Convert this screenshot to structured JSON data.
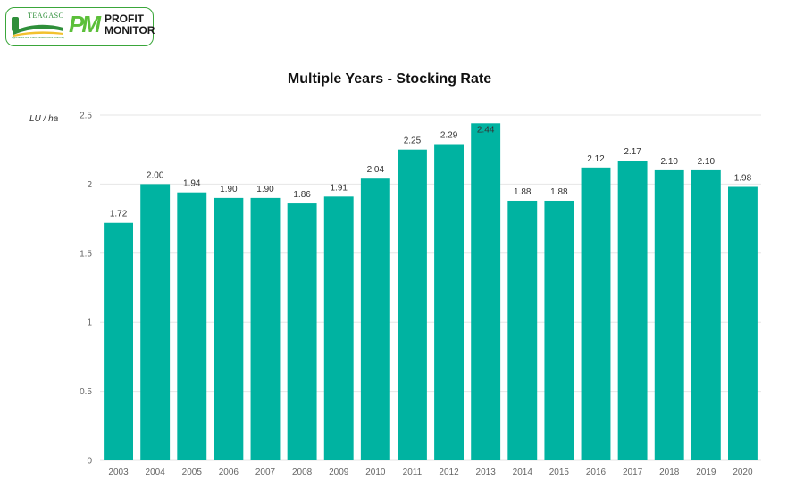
{
  "logo": {
    "org": "TEAGASC",
    "org_tagline": "Agriculture and Food Development Authority",
    "mark": "PM",
    "product_line1": "PROFIT",
    "product_line2": "MONITOR"
  },
  "colors": {
    "bar": "#00b3a1",
    "grid": "#e6e6e6",
    "brand_green": "#5cbf3a"
  },
  "chart_data": {
    "type": "bar",
    "title": "Multiple Years -  Stocking Rate",
    "ylabel": "LU / ha",
    "xlabel": "",
    "ylim": [
      0,
      2.5
    ],
    "yticks": [
      0,
      0.5,
      1,
      1.5,
      2,
      2.5
    ],
    "ytick_labels": [
      "0",
      "0.5",
      "1",
      "1.5",
      "2",
      "2.5"
    ],
    "grid": true,
    "categories": [
      "2003",
      "2004",
      "2005",
      "2006",
      "2007",
      "2008",
      "2009",
      "2010",
      "2011",
      "2012",
      "2013",
      "2014",
      "2015",
      "2016",
      "2017",
      "2018",
      "2019",
      "2020"
    ],
    "values": [
      1.72,
      2.0,
      1.94,
      1.9,
      1.9,
      1.86,
      1.91,
      2.04,
      2.25,
      2.29,
      2.44,
      1.88,
      1.88,
      2.12,
      2.17,
      2.1,
      2.1,
      1.98
    ],
    "value_labels": [
      "1.72",
      "2.00",
      "1.94",
      "1.90",
      "1.90",
      "1.86",
      "1.91",
      "2.04",
      "2.25",
      "2.29",
      "2.44",
      "1.88",
      "1.88",
      "2.12",
      "2.17",
      "2.10",
      "2.10",
      "1.98"
    ]
  }
}
